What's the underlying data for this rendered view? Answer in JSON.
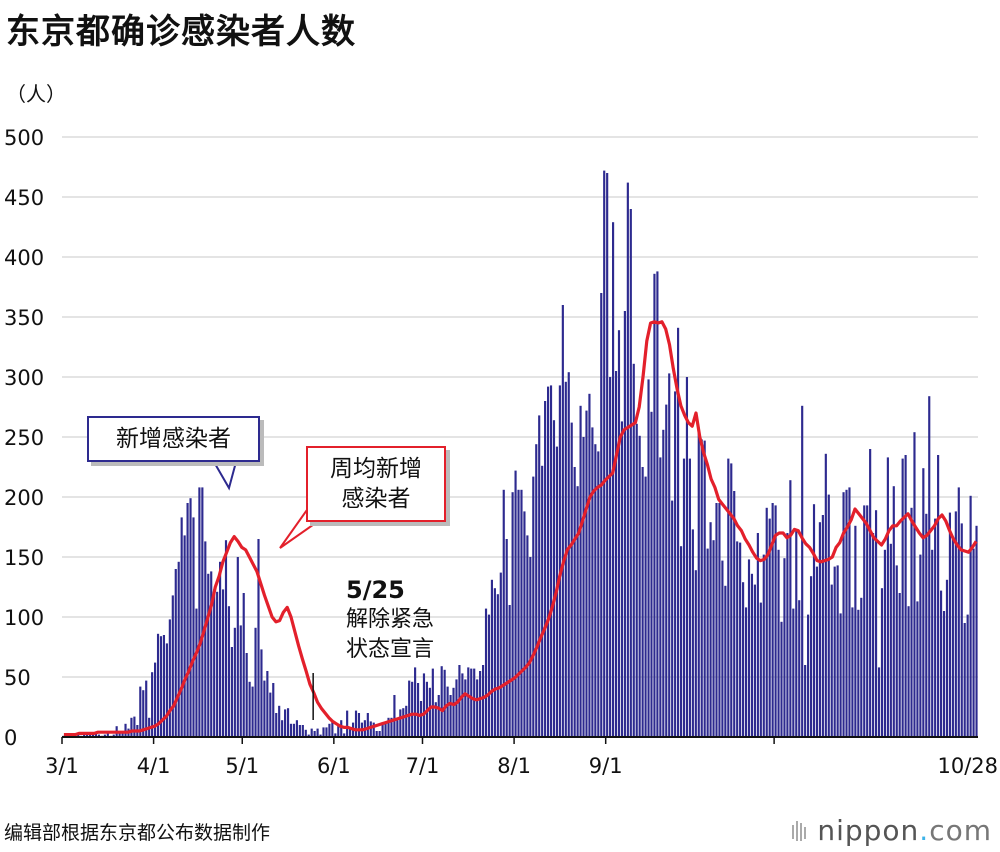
{
  "chart_data": {
    "type": "bar",
    "title": "东京都确诊感染者人数",
    "ylabel": "（人）",
    "ylim": [
      0,
      500
    ],
    "yticks": [
      0,
      50,
      100,
      150,
      200,
      250,
      300,
      350,
      400,
      450,
      500
    ],
    "grid": true,
    "x_start": "3/1",
    "x_end": "10/28",
    "xtick_labels": [
      "3/1",
      "4/1",
      "5/1",
      "6/1",
      "7/1",
      "8/1",
      "9/1",
      "10/28"
    ],
    "series": [
      {
        "name": "新增感染者",
        "type": "bar",
        "color": "#2d2a8f",
        "values": [
          1,
          2,
          1,
          1,
          2,
          2,
          1,
          4,
          2,
          3,
          4,
          3,
          2,
          1,
          2,
          3,
          1,
          2,
          9,
          5,
          3,
          11,
          7,
          16,
          17,
          10,
          42,
          39,
          47,
          16,
          54,
          62,
          86,
          84,
          85,
          78,
          98,
          118,
          140,
          146,
          183,
          168,
          195,
          199,
          183,
          107,
          208,
          208,
          163,
          136,
          138,
          123,
          121,
          146,
          123,
          164,
          109,
          75,
          91,
          150,
          93,
          120,
          70,
          46,
          42,
          91,
          165,
          73,
          47,
          55,
          37,
          45,
          20,
          26,
          14,
          23,
          24,
          11,
          11,
          14,
          10,
          10,
          6,
          2,
          7,
          5,
          7,
          2,
          8,
          8,
          11,
          14,
          3,
          11,
          14,
          3,
          22,
          7,
          12,
          22,
          20,
          12,
          14,
          20,
          13,
          12,
          5,
          5,
          12,
          12,
          16,
          16,
          35,
          14,
          23,
          24,
          26,
          47,
          46,
          58,
          45,
          30,
          53,
          46,
          41,
          57,
          29,
          35,
          59,
          56,
          42,
          35,
          41,
          48,
          60,
          53,
          48,
          58,
          57,
          57,
          48,
          55,
          60,
          107,
          102,
          131,
          124,
          119,
          137,
          206,
          165,
          110,
          204,
          222,
          206,
          206,
          188,
          168,
          150,
          217,
          244,
          268,
          226,
          280,
          292,
          293,
          264,
          242,
          293,
          360,
          296,
          304,
          262,
          225,
          209,
          276,
          250,
          272,
          286,
          258,
          244,
          238,
          370,
          472,
          470,
          300,
          429,
          305,
          339,
          263,
          355,
          462,
          440,
          311,
          261,
          251,
          225,
          217,
          298,
          271,
          386,
          388,
          233,
          256,
          277,
          303,
          197,
          288,
          341,
          159,
          232,
          300,
          232,
          173,
          139,
          258,
          248,
          247,
          157,
          179,
          164,
          195,
          195,
          147,
          126,
          232,
          228,
          205,
          163,
          162,
          129,
          108,
          148,
          136,
          127,
          170,
          112,
          152,
          191,
          182,
          195,
          193,
          156,
          96,
          149,
          170,
          214,
          107,
          172,
          114,
          276,
          60,
          102,
          134,
          194,
          142,
          179,
          185,
          236,
          202,
          127,
          142,
          143,
          103,
          204,
          206,
          208,
          108,
          176,
          106,
          116,
          193,
          193,
          240,
          170,
          189,
          58,
          124,
          156,
          233,
          161,
          209,
          143,
          120,
          232,
          235,
          109,
          191,
          254,
          113,
          152,
          224,
          186,
          284,
          156,
          182,
          235,
          122,
          105,
          131,
          187,
          166,
          188,
          208,
          178,
          95,
          102,
          201,
          157,
          176
        ],
        "values_note_unused": ""
      },
      {
        "name": "周均新增感染者",
        "type": "line",
        "color": "#e3202b",
        "values": [
          2,
          2,
          2,
          2,
          3,
          3,
          3,
          3,
          3,
          4,
          4,
          4,
          4,
          4,
          4,
          4,
          4,
          4,
          5,
          5,
          5,
          6,
          7,
          8,
          9,
          11,
          14,
          17,
          22,
          26,
          33,
          40,
          48,
          55,
          63,
          70,
          78,
          88,
          99,
          110,
          125,
          134,
          146,
          154,
          162,
          167,
          163,
          158,
          156,
          150,
          144,
          138,
          128,
          118,
          109,
          100,
          96,
          97,
          104,
          108,
          100,
          88,
          76,
          65,
          55,
          44,
          37,
          29,
          24,
          20,
          16,
          13,
          11,
          9,
          8,
          8,
          7,
          6,
          6,
          6,
          7,
          8,
          9,
          10,
          11,
          12,
          13,
          14,
          15,
          16,
          17,
          18,
          19,
          19,
          18,
          19,
          22,
          25,
          25,
          24,
          22,
          26,
          28,
          27,
          29,
          33,
          36,
          34,
          32,
          31,
          32,
          33,
          35,
          38,
          40,
          41,
          43,
          45,
          47,
          49,
          52,
          55,
          58,
          62,
          68,
          75,
          83,
          90,
          98,
          108,
          120,
          134,
          146,
          156,
          160,
          165,
          170,
          180,
          190,
          200,
          205,
          208,
          210,
          214,
          217,
          220,
          235,
          250,
          256,
          258,
          260,
          262,
          275,
          300,
          330,
          345,
          346,
          345,
          346,
          340,
          327,
          307,
          290,
          276,
          268,
          262,
          259,
          270,
          250,
          237,
          227,
          215,
          208,
          198,
          194,
          190,
          186,
          182,
          176,
          172,
          165,
          160,
          154,
          149,
          147,
          148,
          152,
          160,
          168,
          170,
          170,
          166,
          168,
          173,
          172,
          166,
          161,
          158,
          153,
          147,
          146,
          147,
          148,
          150,
          158,
          162,
          170,
          175,
          181,
          190,
          186,
          182,
          178,
          172,
          166,
          163,
          160,
          165,
          172,
          176,
          176,
          180,
          183,
          186,
          180,
          175,
          170,
          166,
          168,
          172,
          176,
          182,
          185,
          180,
          172,
          165,
          160,
          156,
          155,
          154,
          158,
          163
        ],
        "values_note_unused": ""
      }
    ],
    "annotations": [
      {
        "label_date": "5/25",
        "text_lines": [
          "解除紧急",
          "状态宣言"
        ]
      }
    ]
  },
  "callouts": {
    "new_cases": "新增感染者",
    "weekly_avg_line1": "周均新增",
    "weekly_avg_line2": "感染者"
  },
  "source": "编辑部根据东京都公布数据制作",
  "brand": {
    "name": "nippon",
    "dot": ".",
    "tld": "com"
  },
  "colors": {
    "bar": "#2d2a8f",
    "line": "#e3202b",
    "grid": "#c8c8c8"
  }
}
